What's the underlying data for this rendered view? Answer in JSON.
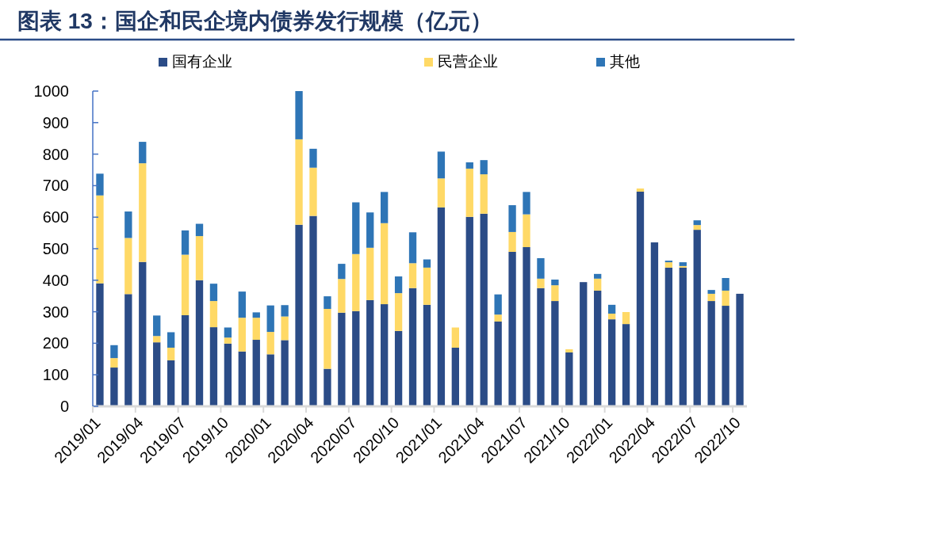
{
  "chart_data": {
    "type": "bar",
    "stacked": true,
    "title": "图表 13：国企和民企境内债券发行规模（亿元）",
    "categories": [
      "2019/01",
      null,
      null,
      "2019/04",
      null,
      null,
      "2019/07",
      null,
      null,
      "2019/10",
      null,
      null,
      "2020/01",
      null,
      null,
      "2020/04",
      null,
      null,
      "2020/07",
      null,
      null,
      "2020/10",
      null,
      null,
      "2021/01",
      null,
      null,
      "2021/04",
      null,
      null,
      "2021/07",
      null,
      null,
      "2021/10",
      null,
      null,
      "2022/01",
      null,
      null,
      "2022/04",
      null,
      null,
      "2022/07",
      null,
      null,
      "2022/10"
    ],
    "series": [
      {
        "name": "国有企业",
        "color": "#2b4c87",
        "values": [
          390,
          123,
          356,
          458,
          203,
          146,
          289,
          400,
          251,
          199,
          174,
          211,
          165,
          210,
          576,
          604,
          119,
          297,
          302,
          337,
          324,
          239,
          375,
          322,
          631,
          186,
          601,
          611,
          269,
          490,
          505,
          375,
          334,
          171,
          394,
          367,
          276,
          261,
          681,
          520,
          440,
          440,
          560,
          334,
          319,
          357
        ]
      },
      {
        "name": "民营企业",
        "color": "#ffd966",
        "values": [
          279,
          30,
          178,
          313,
          20,
          40,
          192,
          140,
          83,
          19,
          107,
          70,
          71,
          75,
          271,
          153,
          190,
          107,
          181,
          166,
          257,
          120,
          79,
          118,
          92,
          64,
          153,
          125,
          22,
          63,
          104,
          30,
          50,
          10,
          0,
          38,
          18,
          38,
          10,
          0,
          17,
          5,
          15,
          23,
          48,
          0
        ]
      },
      {
        "name": "其他",
        "color": "#2e75b6",
        "values": [
          69,
          41,
          84,
          68,
          65,
          49,
          77,
          39,
          55,
          32,
          83,
          17,
          84,
          36,
          153,
          60,
          40,
          48,
          164,
          112,
          99,
          53,
          98,
          26,
          85,
          0,
          20,
          45,
          64,
          85,
          71,
          65,
          18,
          0,
          0,
          15,
          28,
          0,
          0,
          0,
          5,
          12,
          15,
          12,
          40,
          0
        ]
      }
    ],
    "ylim": [
      0,
      1000
    ],
    "yticks": [
      0,
      100,
      200,
      300,
      400,
      500,
      600,
      700,
      800,
      900,
      1000
    ],
    "legend": "top"
  }
}
